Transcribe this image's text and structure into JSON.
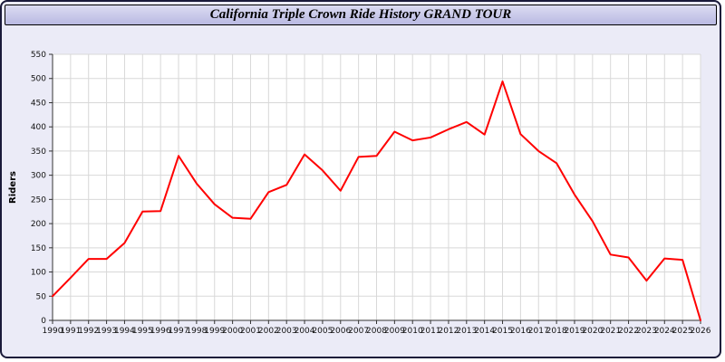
{
  "title": "California Triple Crown Ride History GRAND TOUR",
  "colors": {
    "line": "#ff0000",
    "plot_background": "#ffffff",
    "page_background": "#ebebf7",
    "grid": "#d8d8d8",
    "axis": "#333333"
  },
  "chart_data": {
    "type": "line",
    "title": "California Triple Crown Ride History GRAND TOUR",
    "xlabel": "",
    "ylabel": "Riders",
    "ylim": [
      0,
      550
    ],
    "ytick_step": 50,
    "grid": true,
    "legend": "none",
    "line_color": "#ff0000",
    "x": [
      1990,
      1991,
      1992,
      1993,
      1994,
      1995,
      1996,
      1997,
      1998,
      1999,
      2000,
      2001,
      2002,
      2003,
      2004,
      2005,
      2006,
      2007,
      2008,
      2009,
      2010,
      2011,
      2012,
      2013,
      2014,
      2015,
      2016,
      2017,
      2018,
      2019,
      2020,
      2021,
      2022,
      2023,
      2024,
      2025,
      2026
    ],
    "values": [
      50,
      88,
      127,
      127,
      160,
      225,
      226,
      340,
      283,
      240,
      212,
      210,
      265,
      280,
      343,
      310,
      268,
      338,
      340,
      390,
      372,
      378,
      395,
      410,
      384,
      494,
      385,
      350,
      325,
      260,
      205,
      136,
      130,
      82,
      128,
      125,
      0
    ]
  }
}
